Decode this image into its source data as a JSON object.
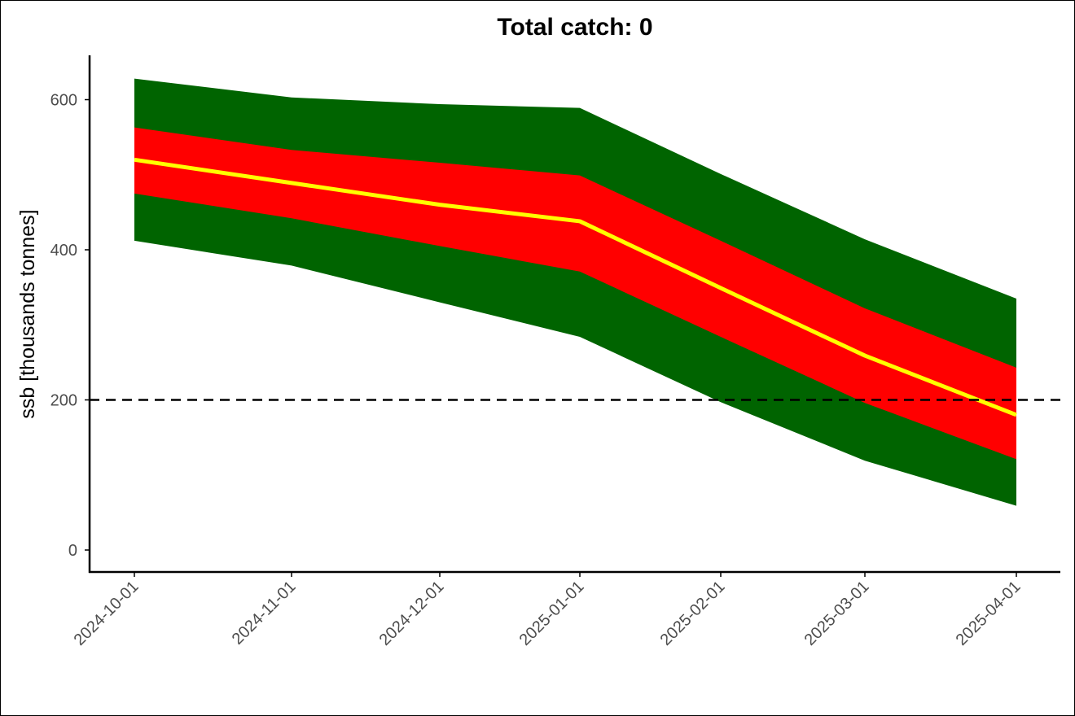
{
  "chart_data": {
    "type": "area",
    "title": "Total catch: 0",
    "xlabel": "",
    "ylabel": "ssb [thousands tonnes]",
    "x": [
      "2024-10-01",
      "2024-11-01",
      "2024-12-01",
      "2025-01-01",
      "2025-02-01",
      "2025-03-01",
      "2025-04-01"
    ],
    "ylim": [
      -30,
      660
    ],
    "yticks": [
      0,
      200,
      400,
      600
    ],
    "grid": false,
    "reference_line": {
      "y": 200,
      "style": "dashed",
      "color": "#000000"
    },
    "bands": [
      {
        "color": "#006400",
        "lower": [
          412,
          379,
          330,
          284,
          197,
          119,
          59
        ],
        "upper": [
          628,
          603,
          594,
          589,
          501,
          414,
          335
        ]
      },
      {
        "color": "#ff0000",
        "lower": [
          475,
          442,
          405,
          371,
          284,
          196,
          121
        ],
        "upper": [
          563,
          533,
          516,
          499,
          412,
          322,
          243
        ]
      }
    ],
    "series": [
      {
        "color": "#ffff00",
        "values": [
          520,
          489,
          460,
          438,
          349,
          259,
          180
        ]
      }
    ]
  }
}
